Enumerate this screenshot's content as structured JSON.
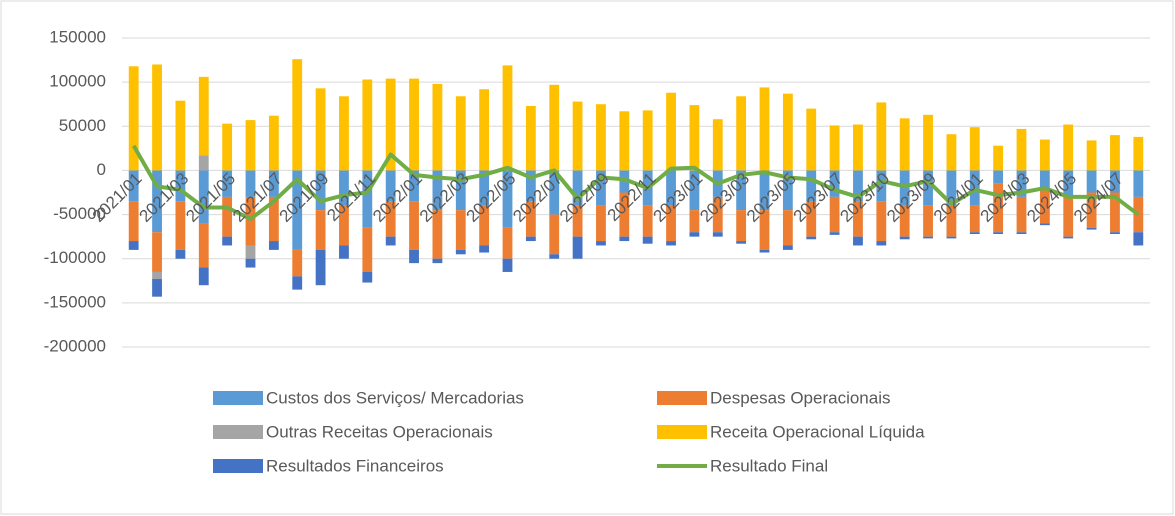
{
  "chart_data": {
    "type": "stacked_bar_line",
    "categories": [
      "2021/01",
      null,
      "2021/03",
      null,
      "2021/05",
      null,
      "2021/07",
      null,
      "2021/09",
      null,
      "2021/11",
      null,
      "2022/01",
      null,
      "2022/03",
      null,
      "2022/05",
      null,
      "2022/07",
      null,
      "2022/09",
      null,
      "2022/11",
      null,
      "2023/01",
      null,
      "2023/03",
      null,
      "2023/05",
      null,
      "2023/07",
      null,
      "2023/10",
      null,
      "2023/09",
      null,
      "2024/01",
      null,
      "2024/03",
      null,
      "2024/05",
      null,
      "2024/07",
      null
    ],
    "ylim": [
      -200000,
      150000
    ],
    "yticks": [
      -200000,
      -150000,
      -100000,
      -50000,
      0,
      50000,
      100000,
      150000
    ],
    "grid": true,
    "series": [
      {
        "name": "Custos dos Serviços/ Mercadorias",
        "color": "#5b9bd5",
        "values": [
          -35000,
          -70000,
          -35000,
          -60000,
          -30000,
          -30000,
          -30000,
          -90000,
          -45000,
          -40000,
          -65000,
          -35000,
          -35000,
          -45000,
          -45000,
          -40000,
          -65000,
          -35000,
          -50000,
          -40000,
          -40000,
          -25000,
          -40000,
          -40000,
          -45000,
          -30000,
          -45000,
          -45000,
          -45000,
          -35000,
          -30000,
          -35000,
          -35000,
          -40000,
          -40000,
          -40000,
          -40000,
          -15000,
          -30000,
          -20000,
          -30000,
          -25000,
          -25000,
          -30000
        ]
      },
      {
        "name": "Despesas Operacionais",
        "color": "#ed7d31",
        "values": [
          -45000,
          -45000,
          -55000,
          -50000,
          -45000,
          -55000,
          -50000,
          -30000,
          -45000,
          -45000,
          -50000,
          -40000,
          -55000,
          -55000,
          -45000,
          -45000,
          -35000,
          -40000,
          -45000,
          -35000,
          -40000,
          -50000,
          -35000,
          -40000,
          -25000,
          -40000,
          -35000,
          -45000,
          -40000,
          -40000,
          -40000,
          -40000,
          -45000,
          -35000,
          -35000,
          -35000,
          -30000,
          -55000,
          -40000,
          -40000,
          -45000,
          -40000,
          -45000,
          -40000
        ]
      },
      {
        "name": "Outras Receitas Operacionais",
        "color": "#a5a5a5",
        "values": [
          0,
          -8000,
          0,
          17000,
          0,
          -15000,
          0,
          0,
          0,
          0,
          0,
          0,
          0,
          0,
          0,
          0,
          0,
          0,
          0,
          0,
          0,
          0,
          0,
          0,
          0,
          0,
          0,
          0,
          0,
          0,
          0,
          0,
          0,
          0,
          0,
          0,
          0,
          0,
          0,
          0,
          0,
          0,
          0,
          0
        ]
      },
      {
        "name": "Receita Operacional Líquida",
        "color": "#ffc000",
        "values": [
          118000,
          120000,
          79000,
          89000,
          53000,
          57000,
          62000,
          126000,
          93000,
          84000,
          103000,
          104000,
          104000,
          98000,
          84000,
          92000,
          119000,
          73000,
          97000,
          78000,
          75000,
          67000,
          68000,
          88000,
          74000,
          58000,
          84000,
          94000,
          87000,
          70000,
          51000,
          52000,
          77000,
          59000,
          63000,
          41000,
          49000,
          28000,
          47000,
          35000,
          52000,
          34000,
          40000,
          38000
        ]
      },
      {
        "name": "Resultados Financeiros",
        "color": "#4472c4",
        "values": [
          -10000,
          -20000,
          -10000,
          -20000,
          -10000,
          -10000,
          -10000,
          -15000,
          -40000,
          -15000,
          -12000,
          -10000,
          -15000,
          -5000,
          -5000,
          -8000,
          -15000,
          -5000,
          -5000,
          -25000,
          -5000,
          -5000,
          -8000,
          -5000,
          -5000,
          -5000,
          -3000,
          -3000,
          -5000,
          -3000,
          -3000,
          -10000,
          -5000,
          -3000,
          -2000,
          -2000,
          -2000,
          -2000,
          -2000,
          -2000,
          -2000,
          -2000,
          -2000,
          -15000
        ]
      },
      {
        "name": "Resultado Final",
        "color": "#70ad47",
        "kind": "line",
        "values": [
          28000,
          -18000,
          -22000,
          -42000,
          -42000,
          -55000,
          -35000,
          -10000,
          -35000,
          -28000,
          -25000,
          18000,
          -5000,
          -8000,
          -10000,
          -5000,
          3000,
          -8000,
          0,
          -32000,
          -8000,
          -10000,
          -20000,
          2000,
          3000,
          -15000,
          -5000,
          -2000,
          -8000,
          -10000,
          -22000,
          -30000,
          -12000,
          -18000,
          -12000,
          -38000,
          -22000,
          -28000,
          -25000,
          -20000,
          -30000,
          -30000,
          -30000,
          -50000
        ]
      }
    ]
  }
}
